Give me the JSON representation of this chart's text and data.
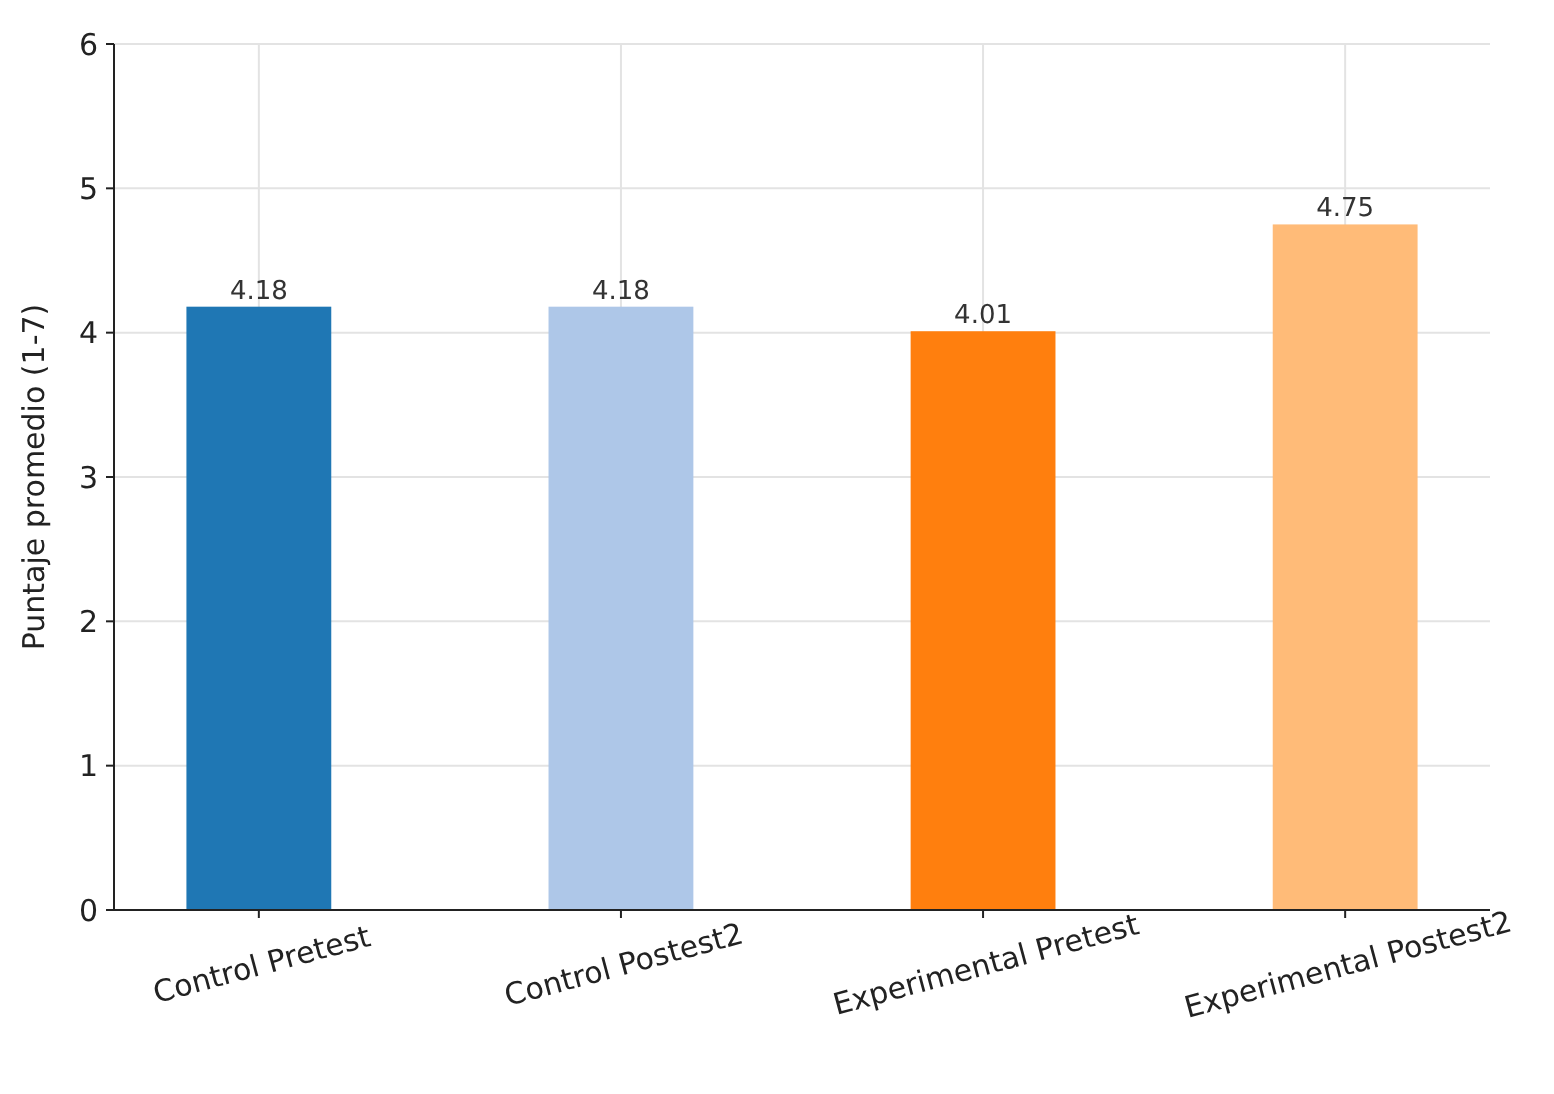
{
  "chart_data": {
    "type": "bar",
    "ylabel": "Puntaje promedio (1-7)",
    "categories": [
      "Control Pretest",
      "Control Postest2",
      "Experimental Pretest",
      "Experimental Postest2"
    ],
    "values": [
      4.18,
      4.18,
      4.01,
      4.75
    ],
    "colors": [
      "#1f77b4",
      "#aec7e8",
      "#ff7f0e",
      "#ffbb78"
    ],
    "ylim": [
      0,
      6
    ],
    "yticks": [
      0,
      1,
      2,
      3,
      4,
      5,
      6
    ],
    "grid": true,
    "data_labels": true
  }
}
